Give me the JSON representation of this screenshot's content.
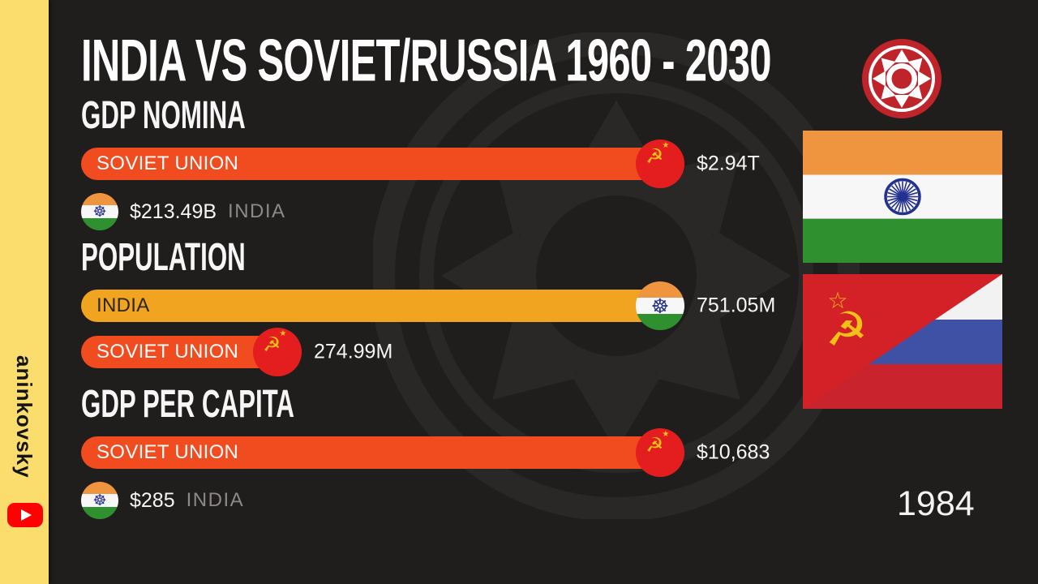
{
  "title": "INDIA VS SOVIET/RUSSIA 1960 - 2030",
  "year": "1984",
  "channel": {
    "name": "aninkovsky"
  },
  "icons": {
    "ashoka_chakra": "☸",
    "soviet_emblem": "☭",
    "soviet_star": "★",
    "youtube_play": "play-triangle",
    "channel_logo": "sun-burst",
    "watermark": "sun-burst"
  },
  "colors": {
    "background": "#201d1d",
    "sidebar": "#fbdd6d",
    "soviet_bar": "#f14c1f",
    "soviet_badge": "#e41d1f",
    "india_bar": "#f1a41f",
    "bar_text_dark": "#2d2516",
    "bar_text_light": "#fdfdfd",
    "text_primary": "#f5f5f5",
    "text_secondary": "#8d8989",
    "gold": "#f2c118",
    "india_saffron": "#f0953f",
    "india_white": "#f7f7f7",
    "india_green": "#2f9030",
    "chakra_navy": "#23318f",
    "soviet_flag_red": "#d42027",
    "russia_white": "#f2f2f2",
    "russia_blue": "#3f51a5",
    "russia_red": "#c9242e",
    "youtube_red": "#fe0100",
    "logo_red": "#bf242b"
  },
  "chart_data": {
    "type": "bar",
    "title": "INDIA VS SOVIET/RUSSIA 1960 - 2030",
    "current_year": "1984",
    "orientation": "horizontal",
    "legend_position": "none",
    "sections": [
      {
        "label": "GDP NOMINA",
        "bars": [
          {
            "name": "SOVIET UNION",
            "value": 2940000000000,
            "value_label": "$2.94T",
            "flag": "soviet",
            "display": "bar"
          },
          {
            "name": "INDIA",
            "value": 213490000000,
            "value_label": "$213.49B",
            "flag": "india",
            "display": "badge"
          }
        ]
      },
      {
        "label": "POPULATION",
        "bars": [
          {
            "name": "INDIA",
            "value": 751050000,
            "value_label": "751.05M",
            "flag": "india",
            "display": "bar"
          },
          {
            "name": "SOVIET UNION",
            "value": 274990000,
            "value_label": "274.99M",
            "flag": "soviet",
            "display": "bar"
          }
        ]
      },
      {
        "label": "GDP PER CAPITA",
        "bars": [
          {
            "name": "SOVIET UNION",
            "value": 10683,
            "value_label": "$10,683",
            "flag": "soviet",
            "display": "bar"
          },
          {
            "name": "INDIA",
            "value": 285,
            "value_label": "$285",
            "flag": "india",
            "display": "badge"
          }
        ]
      }
    ]
  }
}
